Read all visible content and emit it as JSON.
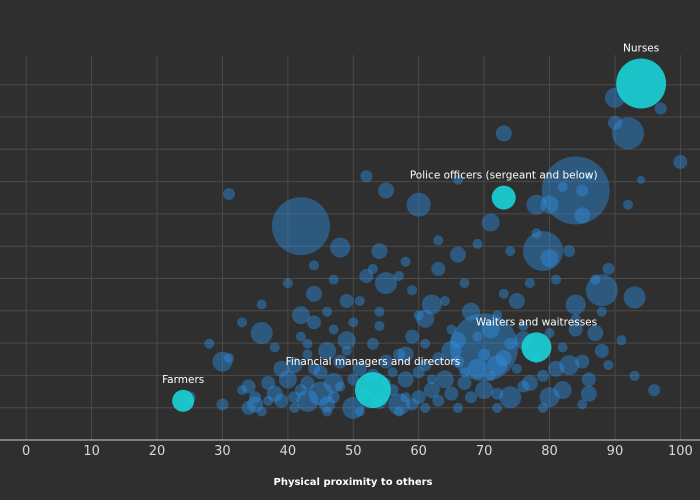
{
  "chart_data": {
    "type": "scatter",
    "xlabel": "Physical proximity to others",
    "ylabel": "",
    "xlim": [
      -4,
      103
    ],
    "ylim": [
      -8,
      100
    ],
    "x_ticks": [
      "0",
      "10",
      "20",
      "30",
      "40",
      "50",
      "60",
      "70",
      "80",
      "90",
      "100"
    ],
    "grid": true,
    "colors": {
      "background": "#2f2f2f",
      "grid": "#4a4a4a",
      "point": "#2f8fe0",
      "highlight": "#19d3d8"
    },
    "highlighted": [
      {
        "label": "Nurses",
        "x": 94,
        "y": 92,
        "size": 25
      },
      {
        "label": "Police officers (sergeant and below)",
        "x": 73,
        "y": 60,
        "size": 12
      },
      {
        "label": "Waiters and waitresses",
        "x": 78,
        "y": 18,
        "size": 15
      },
      {
        "label": "Financial managers and directors",
        "x": 53,
        "y": 6,
        "size": 18
      },
      {
        "label": "Farmers",
        "x": 24,
        "y": 3,
        "size": 11
      }
    ],
    "points": [
      [
        42,
        52,
        29
      ],
      [
        84,
        62,
        34
      ],
      [
        70,
        18,
        34
      ],
      [
        79,
        45,
        20
      ],
      [
        92,
        78,
        16
      ],
      [
        88,
        34,
        16
      ],
      [
        60,
        58,
        12
      ],
      [
        93,
        32,
        11
      ],
      [
        90,
        88,
        10
      ],
      [
        73,
        78,
        8
      ],
      [
        55,
        62,
        8
      ],
      [
        31,
        61,
        6
      ],
      [
        97,
        85,
        6
      ],
      [
        85,
        55,
        8
      ],
      [
        90,
        81,
        7
      ],
      [
        36,
        22,
        11
      ],
      [
        30,
        14,
        10
      ],
      [
        78,
        58,
        10
      ],
      [
        80,
        43,
        9
      ],
      [
        55,
        36,
        11
      ],
      [
        48,
        46,
        10
      ],
      [
        71,
        53,
        9
      ],
      [
        66,
        44,
        8
      ],
      [
        80,
        58,
        9
      ],
      [
        62,
        30,
        10
      ],
      [
        54,
        45,
        8
      ],
      [
        61,
        26,
        9
      ],
      [
        72,
        13,
        10
      ],
      [
        64,
        9,
        9
      ],
      [
        46,
        17,
        9
      ],
      [
        42,
        27,
        9
      ],
      [
        58,
        16,
        8
      ],
      [
        44,
        33,
        8
      ],
      [
        49,
        20,
        9
      ],
      [
        39,
        12,
        8
      ],
      [
        47,
        8,
        10
      ],
      [
        40,
        9,
        9
      ],
      [
        65,
        17,
        10
      ],
      [
        83,
        13,
        10
      ],
      [
        74,
        4,
        11
      ],
      [
        57,
        2,
        11
      ],
      [
        45,
        5,
        12
      ],
      [
        43,
        3,
        11
      ],
      [
        50,
        1,
        11
      ],
      [
        76,
        20,
        9
      ],
      [
        69,
        12,
        10
      ],
      [
        84,
        30,
        10
      ],
      [
        87,
        22,
        8
      ],
      [
        70,
        6,
        9
      ],
      [
        77,
        8,
        8
      ],
      [
        81,
        12,
        8
      ],
      [
        86,
        9,
        7
      ],
      [
        75,
        31,
        8
      ],
      [
        68,
        28,
        9
      ],
      [
        63,
        40,
        7
      ],
      [
        52,
        38,
        7
      ],
      [
        44,
        25,
        7
      ],
      [
        38,
        5,
        8
      ],
      [
        35,
        2,
        8
      ],
      [
        100,
        70,
        7
      ],
      [
        96,
        6,
        6
      ],
      [
        84,
        23,
        7
      ],
      [
        52,
        66,
        6
      ],
      [
        49,
        31,
        7
      ],
      [
        41,
        13,
        8
      ],
      [
        55,
        14,
        7
      ],
      [
        59,
        21,
        7
      ],
      [
        62,
        6,
        8
      ],
      [
        66,
        20,
        8
      ],
      [
        71,
        23,
        9
      ],
      [
        73,
        15,
        8
      ],
      [
        65,
        5,
        7
      ],
      [
        67,
        8,
        7
      ],
      [
        82,
        6,
        9
      ],
      [
        80,
        4,
        10
      ],
      [
        86,
        5,
        8
      ],
      [
        88,
        17,
        7
      ],
      [
        85,
        14,
        7
      ],
      [
        58,
        9,
        8
      ],
      [
        51,
        12,
        7
      ],
      [
        48,
        14,
        7
      ],
      [
        45,
        11,
        7
      ],
      [
        37,
        8,
        7
      ],
      [
        34,
        7,
        7
      ],
      [
        54,
        3,
        8
      ],
      [
        60,
        4,
        7
      ],
      [
        53,
        10,
        7
      ],
      [
        46,
        2,
        8
      ],
      [
        43,
        8,
        7
      ],
      [
        39,
        3,
        7
      ],
      [
        34,
        1,
        7
      ],
      [
        30,
        2,
        6
      ],
      [
        25,
        4,
        6
      ],
      [
        35,
        4,
        6
      ],
      [
        42,
        6,
        6
      ],
      [
        47,
        4,
        6
      ],
      [
        52,
        5,
        6
      ],
      [
        56,
        6,
        6
      ],
      [
        59,
        2,
        6
      ],
      [
        63,
        3,
        6
      ],
      [
        68,
        4,
        6
      ],
      [
        72,
        5,
        6
      ],
      [
        76,
        7,
        6
      ],
      [
        79,
        10,
        6
      ],
      [
        61,
        13,
        6
      ],
      [
        57,
        16,
        6
      ],
      [
        53,
        19,
        6
      ],
      [
        63,
        15,
        6
      ],
      [
        70,
        16,
        6
      ],
      [
        74,
        19,
        6
      ],
      [
        66,
        14,
        6
      ],
      [
        60,
        11,
        6
      ],
      [
        50,
        9,
        6
      ],
      [
        44,
        12,
        6
      ],
      [
        41,
        4,
        6
      ],
      [
        37,
        3,
        5
      ],
      [
        33,
        6,
        5
      ],
      [
        48,
        7,
        5
      ],
      [
        55,
        8,
        5
      ],
      [
        58,
        4,
        5
      ],
      [
        62,
        9,
        5
      ],
      [
        67,
        11,
        5
      ],
      [
        71,
        10,
        5
      ],
      [
        75,
        12,
        5
      ],
      [
        78,
        15,
        5
      ],
      [
        82,
        18,
        5
      ],
      [
        69,
        21,
        5
      ],
      [
        65,
        23,
        5
      ],
      [
        61,
        19,
        5
      ],
      [
        56,
        11,
        5
      ],
      [
        54,
        24,
        5
      ],
      [
        47,
        23,
        5
      ],
      [
        43,
        19,
        5
      ],
      [
        53,
        40,
        5
      ],
      [
        58,
        42,
        5
      ],
      [
        63,
        48,
        5
      ],
      [
        69,
        47,
        5
      ],
      [
        74,
        45,
        5
      ],
      [
        78,
        50,
        5
      ],
      [
        85,
        62,
        6
      ],
      [
        82,
        63,
        5
      ],
      [
        66,
        65,
        5
      ],
      [
        86,
        66,
        4
      ],
      [
        94,
        65,
        4
      ],
      [
        92,
        58,
        5
      ],
      [
        83,
        45,
        6
      ],
      [
        89,
        40,
        6
      ],
      [
        87,
        37,
        5
      ],
      [
        81,
        37,
        5
      ],
      [
        77,
        36,
        5
      ],
      [
        73,
        33,
        5
      ],
      [
        67,
        36,
        5
      ],
      [
        59,
        34,
        5
      ],
      [
        57,
        38,
        5
      ],
      [
        51,
        31,
        5
      ],
      [
        47,
        37,
        5
      ],
      [
        44,
        41,
        5
      ],
      [
        40,
        36,
        5
      ],
      [
        36,
        30,
        5
      ],
      [
        33,
        25,
        5
      ],
      [
        28,
        19,
        5
      ],
      [
        31,
        15,
        5
      ],
      [
        38,
        18,
        5
      ],
      [
        42,
        21,
        5
      ],
      [
        46,
        28,
        5
      ],
      [
        50,
        25,
        5
      ],
      [
        54,
        28,
        5
      ],
      [
        60,
        27,
        5
      ],
      [
        64,
        31,
        5
      ],
      [
        72,
        27,
        5
      ],
      [
        76,
        24,
        5
      ],
      [
        80,
        22,
        5
      ],
      [
        84,
        26,
        5
      ],
      [
        88,
        28,
        5
      ],
      [
        91,
        20,
        5
      ],
      [
        93,
        10,
        5
      ],
      [
        89,
        13,
        5
      ],
      [
        85,
        2,
        5
      ],
      [
        79,
        1,
        5
      ],
      [
        72,
        1,
        5
      ],
      [
        66,
        1,
        5
      ],
      [
        61,
        1,
        5
      ],
      [
        57,
        0,
        5
      ],
      [
        51,
        0,
        5
      ],
      [
        46,
        0,
        5
      ],
      [
        41,
        1,
        5
      ],
      [
        36,
        0,
        5
      ],
      [
        43,
        16,
        5
      ],
      [
        49,
        17,
        5
      ]
    ]
  }
}
